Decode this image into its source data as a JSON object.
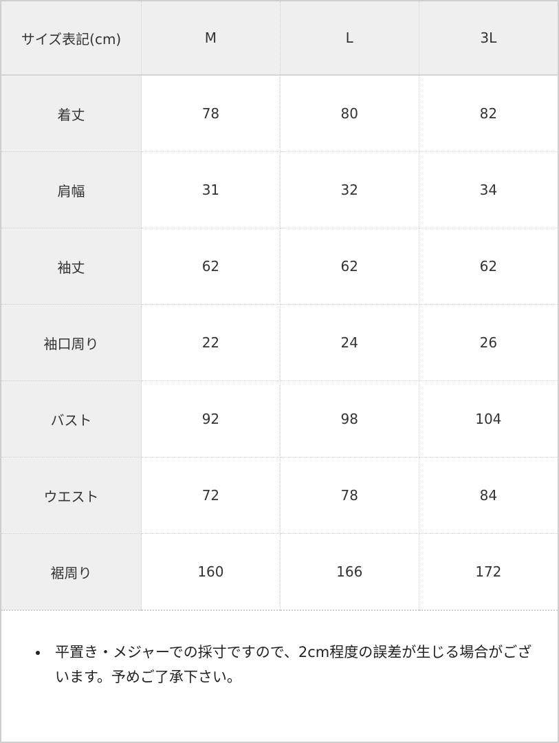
{
  "table": {
    "header": [
      "サイズ表記(cm)",
      "M",
      "L",
      "3L"
    ],
    "rows": [
      {
        "label": "着丈",
        "values": [
          "78",
          "80",
          "82"
        ]
      },
      {
        "label": "肩幅",
        "values": [
          "31",
          "32",
          "34"
        ]
      },
      {
        "label": "袖丈",
        "values": [
          "62",
          "62",
          "62"
        ]
      },
      {
        "label": "袖口周り",
        "values": [
          "22",
          "24",
          "26"
        ]
      },
      {
        "label": "バスト",
        "values": [
          "92",
          "98",
          "104"
        ]
      },
      {
        "label": "ウエスト",
        "values": [
          "72",
          "78",
          "84"
        ]
      },
      {
        "label": "裾周り",
        "values": [
          "160",
          "166",
          "172"
        ]
      }
    ]
  },
  "note": "平置き・メジャーでの採寸ですので、2cm程度の誤差が生じる場合がございます。予めご了承下さい。",
  "colors": {
    "header_bg": "#efefef",
    "border": "#cfcfcf",
    "text": "#333333"
  }
}
